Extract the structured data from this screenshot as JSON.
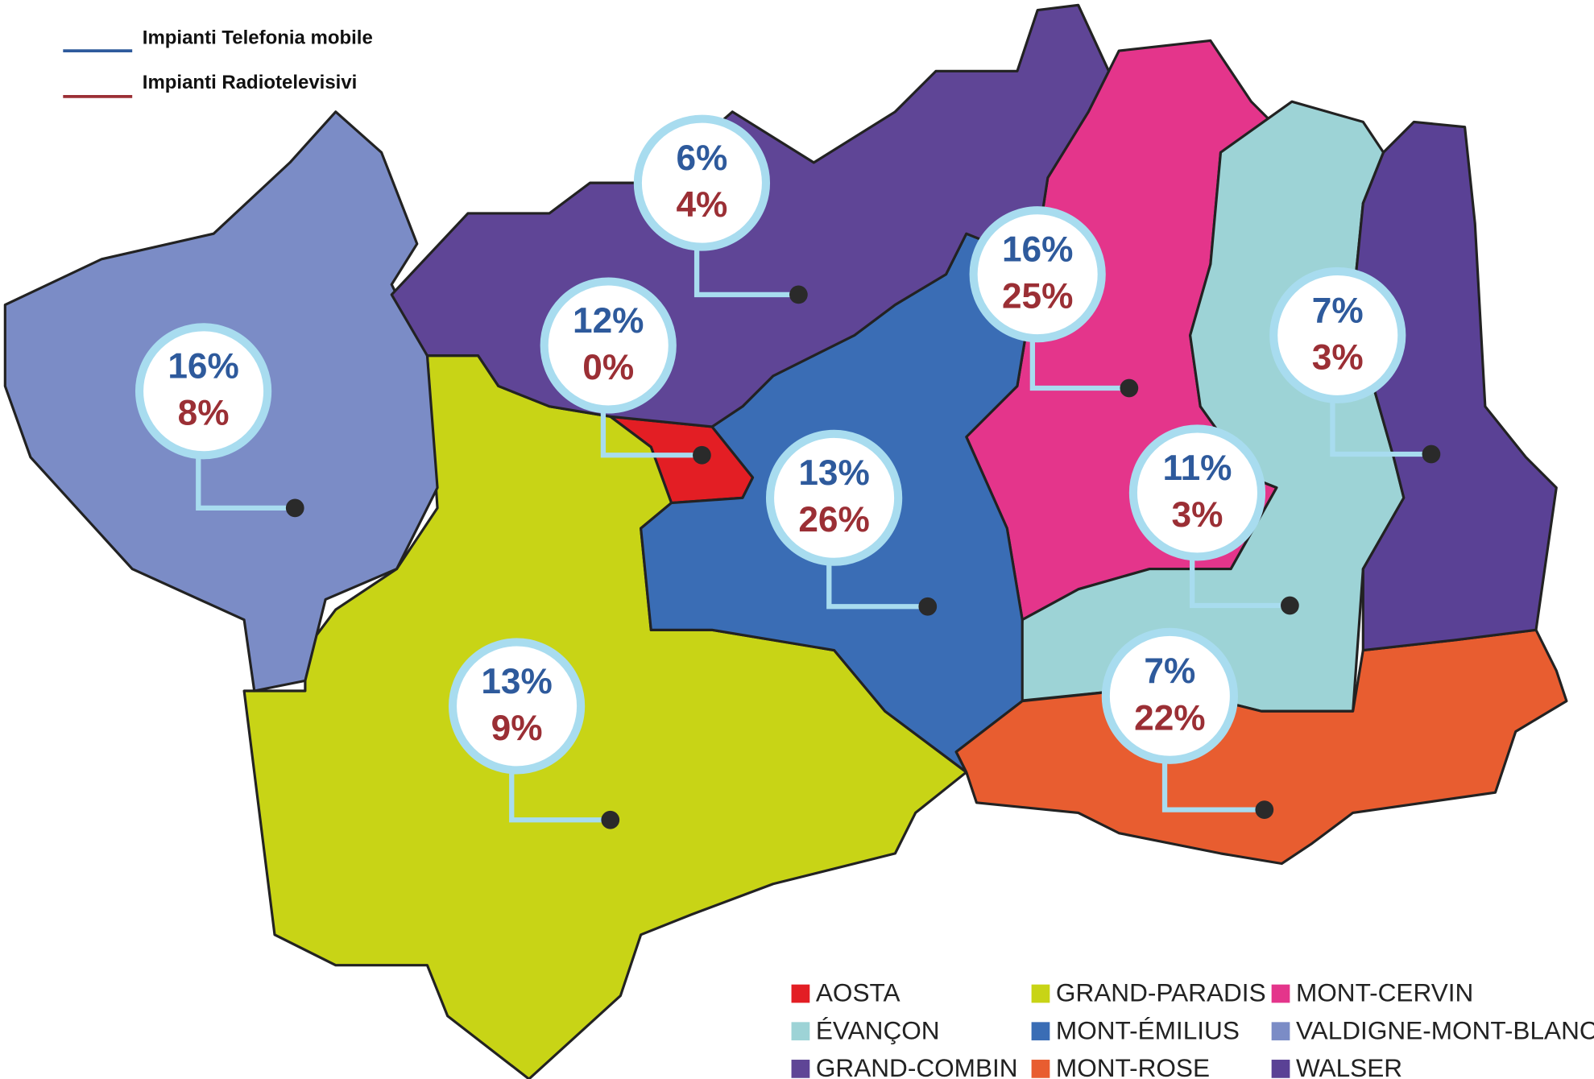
{
  "legend": {
    "mobile": "Impianti Telefonia mobile",
    "radio": "Impianti Radiotelevisivi",
    "mobile_color": "#2e5a9c",
    "radio_color": "#9b2f35"
  },
  "regions": [
    {
      "name": "AOSTA",
      "color": "#e31e24",
      "mobile": "12%",
      "radio": "0%"
    },
    {
      "name": "GRAND-PARADIS",
      "color": "#c8d416",
      "mobile": "13%",
      "radio": "9%"
    },
    {
      "name": "MONT-CERVIN",
      "color": "#e4358b",
      "mobile": "16%",
      "radio": "25%"
    },
    {
      "name": "ÉVANÇON",
      "color": "#9dd3d6",
      "mobile": "11%",
      "radio": "3%"
    },
    {
      "name": "MONT-ÉMILIUS",
      "color": "#3a6db5",
      "mobile": "13%",
      "radio": "26%"
    },
    {
      "name": "VALDIGNE-MONT-BLANC",
      "color": "#7b8cc6",
      "mobile": "16%",
      "radio": "8%"
    },
    {
      "name": "GRAND-COMBIN",
      "color": "#5f4596",
      "mobile": "6%",
      "radio": "4%"
    },
    {
      "name": "MONT-ROSE",
      "color": "#e85d30",
      "mobile": "7%",
      "radio": "22%"
    },
    {
      "name": "WALSER",
      "color": "#5a4195",
      "mobile": "7%",
      "radio": "3%"
    }
  ]
}
